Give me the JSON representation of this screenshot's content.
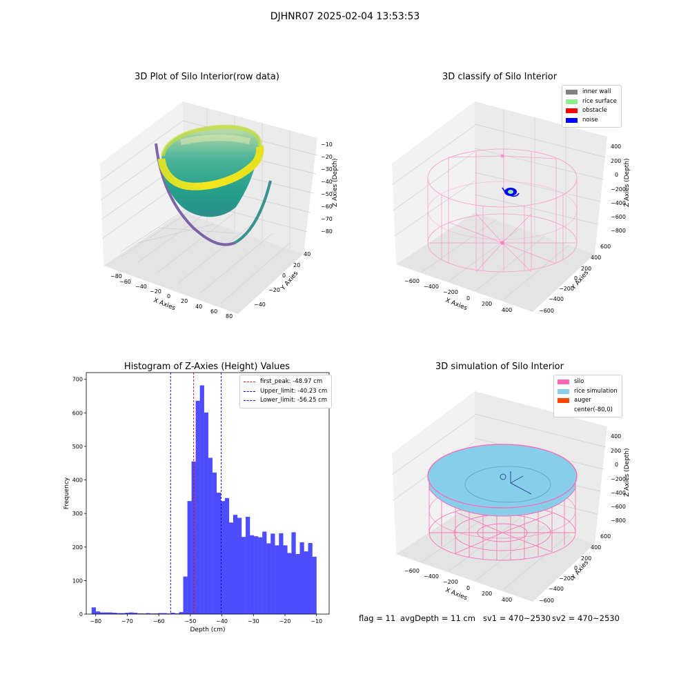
{
  "suptitle": "DJHNR07 2025-02-04 13:53:53",
  "colors": {
    "histogram_bar": "#4d4dff",
    "first_peak_line": "#ff0000",
    "limit_line": "#0000cc",
    "inner_wall": "#808080",
    "rice_surface": "#90ee90",
    "obstacle": "#ff0000",
    "noise": "#0000ff",
    "silo": "#ff69b4",
    "rice_simulation": "#87ceeb",
    "auger": "#ff4500"
  },
  "panels": {
    "raw": {
      "title": "3D Plot of Silo Interior(row data)",
      "xlabel": "X Axies",
      "ylabel": "Y Axies",
      "zlabel": "Z Axies (Depth)",
      "xticks": [
        "−80",
        "−60",
        "−40",
        "−20",
        "0",
        "20",
        "40",
        "60",
        "80"
      ],
      "yticks": [
        "40",
        "20",
        "0",
        "−20",
        "−40"
      ],
      "zticks": [
        "−10",
        "−20",
        "−30",
        "−40",
        "−50",
        "−60",
        "−70",
        "−80"
      ]
    },
    "classify": {
      "title": "3D classify of Silo Interior",
      "xlabel": "X Axies",
      "ylabel": "Y Axies",
      "zlabel": "Z Axies (Depth)",
      "xticks": [
        "−600",
        "−400",
        "−200",
        "0",
        "200",
        "400"
      ],
      "yticks": [
        "600",
        "400",
        "200",
        "0",
        "−200",
        "−400",
        "−600"
      ],
      "zticks": [
        "400",
        "200",
        "0",
        "−200",
        "−400",
        "−600",
        "−800"
      ],
      "legend": [
        {
          "label": "inner wall",
          "color": "#808080"
        },
        {
          "label": "rice surface",
          "color": "#90ee90"
        },
        {
          "label": "obstacle",
          "color": "#ff0000"
        },
        {
          "label": "noise",
          "color": "#0000ff"
        }
      ]
    },
    "simulation": {
      "title": "3D simulation of Silo Interior",
      "xlabel": "X Axies",
      "ylabel": "Y Axies",
      "zlabel": "Z Axies (Depth)",
      "xticks": [
        "−600",
        "−400",
        "−200",
        "0",
        "200",
        "400"
      ],
      "yticks": [
        "600",
        "400",
        "200",
        "0",
        "−200",
        "−400",
        "−600"
      ],
      "zticks": [
        "400",
        "200",
        "0",
        "−200",
        "−400",
        "−600",
        "−800"
      ],
      "legend": [
        {
          "label": "silo",
          "color": "#ff69b4"
        },
        {
          "label": "rice simulation",
          "color": "#87ceeb"
        },
        {
          "label": "auger",
          "color": "#ff4500"
        },
        {
          "label": "center(-80,0)",
          "color": ""
        }
      ]
    }
  },
  "footer": {
    "flag": "flag = 11",
    "avg_depth": "avgDepth = 11 cm",
    "sv1": "sv1 = 470~2530",
    "sv2": "sv2 = 470~2530"
  },
  "chart_data": {
    "type": "bar",
    "title": "Histogram of Z-Axies (Height) Values",
    "xlabel": "Depth (cm)",
    "ylabel": "Frequency",
    "xlim": [
      -83,
      -6
    ],
    "ylim": [
      0,
      720
    ],
    "xticks": [
      -80,
      -70,
      -60,
      -50,
      -40,
      -30,
      -20,
      -10
    ],
    "yticks": [
      0,
      100,
      200,
      300,
      400,
      500,
      600,
      700
    ],
    "bin_width": 1.32,
    "bin_start": -81.3,
    "values": [
      20,
      8,
      5,
      5,
      5,
      4,
      3,
      3,
      4,
      5,
      4,
      2,
      2,
      3,
      2,
      2,
      3,
      3,
      2,
      4,
      2,
      6,
      112,
      337,
      455,
      636,
      682,
      601,
      466,
      422,
      362,
      337,
      346,
      273,
      296,
      287,
      230,
      290,
      235,
      232,
      229,
      246,
      211,
      240,
      205,
      241,
      205,
      182,
      244,
      179,
      214,
      187,
      212,
      171
    ],
    "lines": [
      {
        "label": "first_peak: -48.97 cm",
        "x": -48.97,
        "color": "#ff0000"
      },
      {
        "label": "Upper_limit: -40.23 cm",
        "x": -40.23,
        "color": "#0000cc"
      },
      {
        "label": "Lower_limit: -56.25 cm",
        "x": -56.25,
        "color": "#0000cc"
      }
    ],
    "legend_position": "top-right",
    "grid": false
  }
}
